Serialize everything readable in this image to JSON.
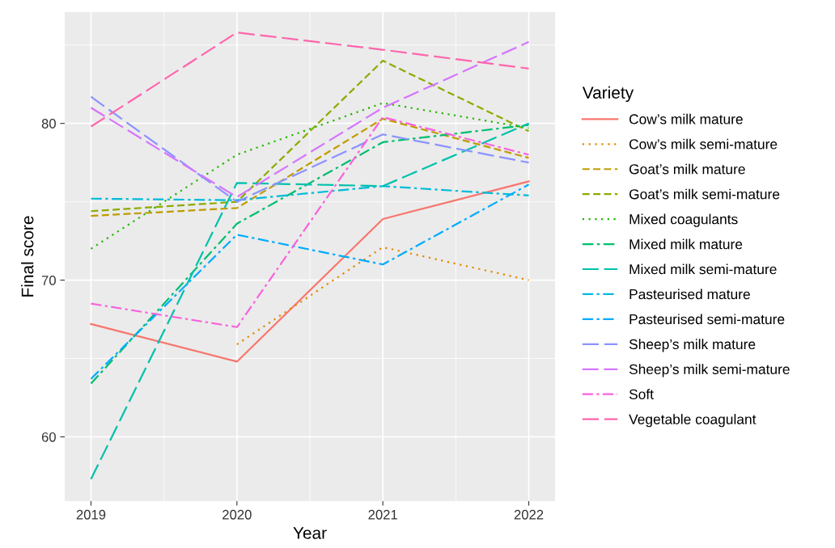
{
  "chart_data": {
    "type": "line",
    "xlabel": "Year",
    "ylabel": "Final score",
    "legend_title": "Variety",
    "legend": "right",
    "grid": true,
    "x": [
      2019,
      2020,
      2021,
      2022
    ],
    "xlim": [
      2018.82,
      2022.18
    ],
    "xticks": [
      2019,
      2020,
      2021,
      2022
    ],
    "ylim": [
      55.9,
      87.1
    ],
    "yticks": [
      60,
      70,
      80
    ],
    "series": [
      {
        "name": "Cow’s milk mature",
        "color": "#f8766d",
        "line_style": "solid",
        "values": [
          67.2,
          64.8,
          73.9,
          76.3
        ]
      },
      {
        "name": "Cow’s milk semi-mature",
        "color": "#e18a00",
        "line_style": "dotted",
        "values": [
          null,
          65.9,
          72.1,
          70.0
        ]
      },
      {
        "name": "Goat’s milk mature",
        "color": "#be9c00",
        "line_style": "dashed",
        "values": [
          74.1,
          74.6,
          80.3,
          77.8
        ]
      },
      {
        "name": "Goat’s milk semi-mature",
        "color": "#8cab00",
        "line_style": "dashed",
        "values": [
          74.4,
          75.0,
          84.0,
          79.5
        ]
      },
      {
        "name": "Mixed coagulants",
        "color": "#24b700",
        "line_style": "dotted",
        "values": [
          72.0,
          78.0,
          81.3,
          79.7
        ]
      },
      {
        "name": "Mixed milk mature",
        "color": "#00be70",
        "line_style": "dashdot",
        "values": [
          63.4,
          73.6,
          78.8,
          79.9
        ]
      },
      {
        "name": "Mixed milk semi-mature",
        "color": "#00c1ab",
        "line_style": "longdash",
        "values": [
          57.3,
          76.2,
          76.0,
          80.0
        ]
      },
      {
        "name": "Pasteurised mature",
        "color": "#00bbda",
        "line_style": "dashdot",
        "values": [
          75.2,
          75.1,
          76.0,
          75.4
        ]
      },
      {
        "name": "Pasteurised semi-mature",
        "color": "#00acfc",
        "line_style": "dashdot",
        "values": [
          63.7,
          72.9,
          71.0,
          76.1
        ]
      },
      {
        "name": "Sheep’s milk mature",
        "color": "#8b93ff",
        "line_style": "longdash",
        "values": [
          81.7,
          75.0,
          79.3,
          77.5
        ]
      },
      {
        "name": "Sheep’s milk semi-mature",
        "color": "#d575fe",
        "line_style": "longdash",
        "values": [
          81.0,
          75.3,
          81.0,
          85.2
        ]
      },
      {
        "name": "Soft",
        "color": "#f962dd",
        "line_style": "dashdot",
        "values": [
          68.5,
          67.0,
          80.4,
          78.0
        ]
      },
      {
        "name": "Vegetable coagulant",
        "color": "#ff65ac",
        "line_style": "longdash",
        "values": [
          79.8,
          85.8,
          84.7,
          83.5
        ]
      }
    ]
  }
}
